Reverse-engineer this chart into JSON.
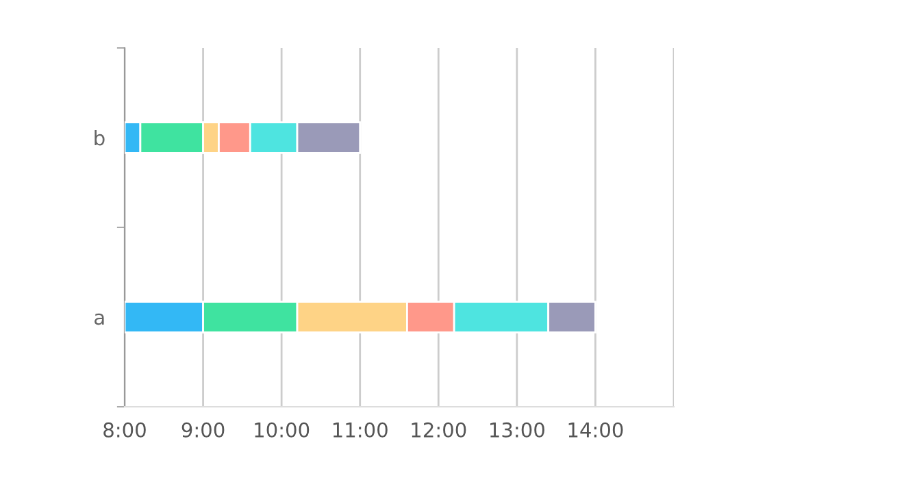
{
  "chart_data": {
    "type": "bar",
    "orientation": "horizontal",
    "categories": [
      "b",
      "a"
    ],
    "series": [
      {
        "color": "#33b8f5",
        "base": [
          8,
          8
        ],
        "values": [
          0.2,
          1
        ]
      },
      {
        "color": "#3fe3a0",
        "base": [
          8.2,
          9
        ],
        "values": [
          0.8,
          1.2
        ]
      },
      {
        "color": "#fed386",
        "base": [
          9,
          10.2
        ],
        "values": [
          0.2,
          1.4
        ]
      },
      {
        "color": "#ff988a",
        "base": [
          9.2,
          11.6
        ],
        "values": [
          0.4,
          0.6
        ]
      },
      {
        "color": "#4ee4e0",
        "base": [
          9.6,
          12.2
        ],
        "values": [
          0.6,
          1.2
        ]
      },
      {
        "color": "#9a9ab8",
        "base": [
          10.2,
          13.4
        ],
        "values": [
          0.8,
          0.6
        ]
      }
    ],
    "xlim": [
      8,
      15
    ],
    "xticks": [
      {
        "value": 8,
        "label": "8:00"
      },
      {
        "value": 9,
        "label": "9:00"
      },
      {
        "value": 10,
        "label": "10:00"
      },
      {
        "value": 11,
        "label": "11:00"
      },
      {
        "value": 12,
        "label": "12:00"
      },
      {
        "value": 13,
        "label": "13:00"
      },
      {
        "value": 14,
        "label": "14:00"
      },
      {
        "value": 15,
        "label": null
      }
    ],
    "grid": "x"
  }
}
